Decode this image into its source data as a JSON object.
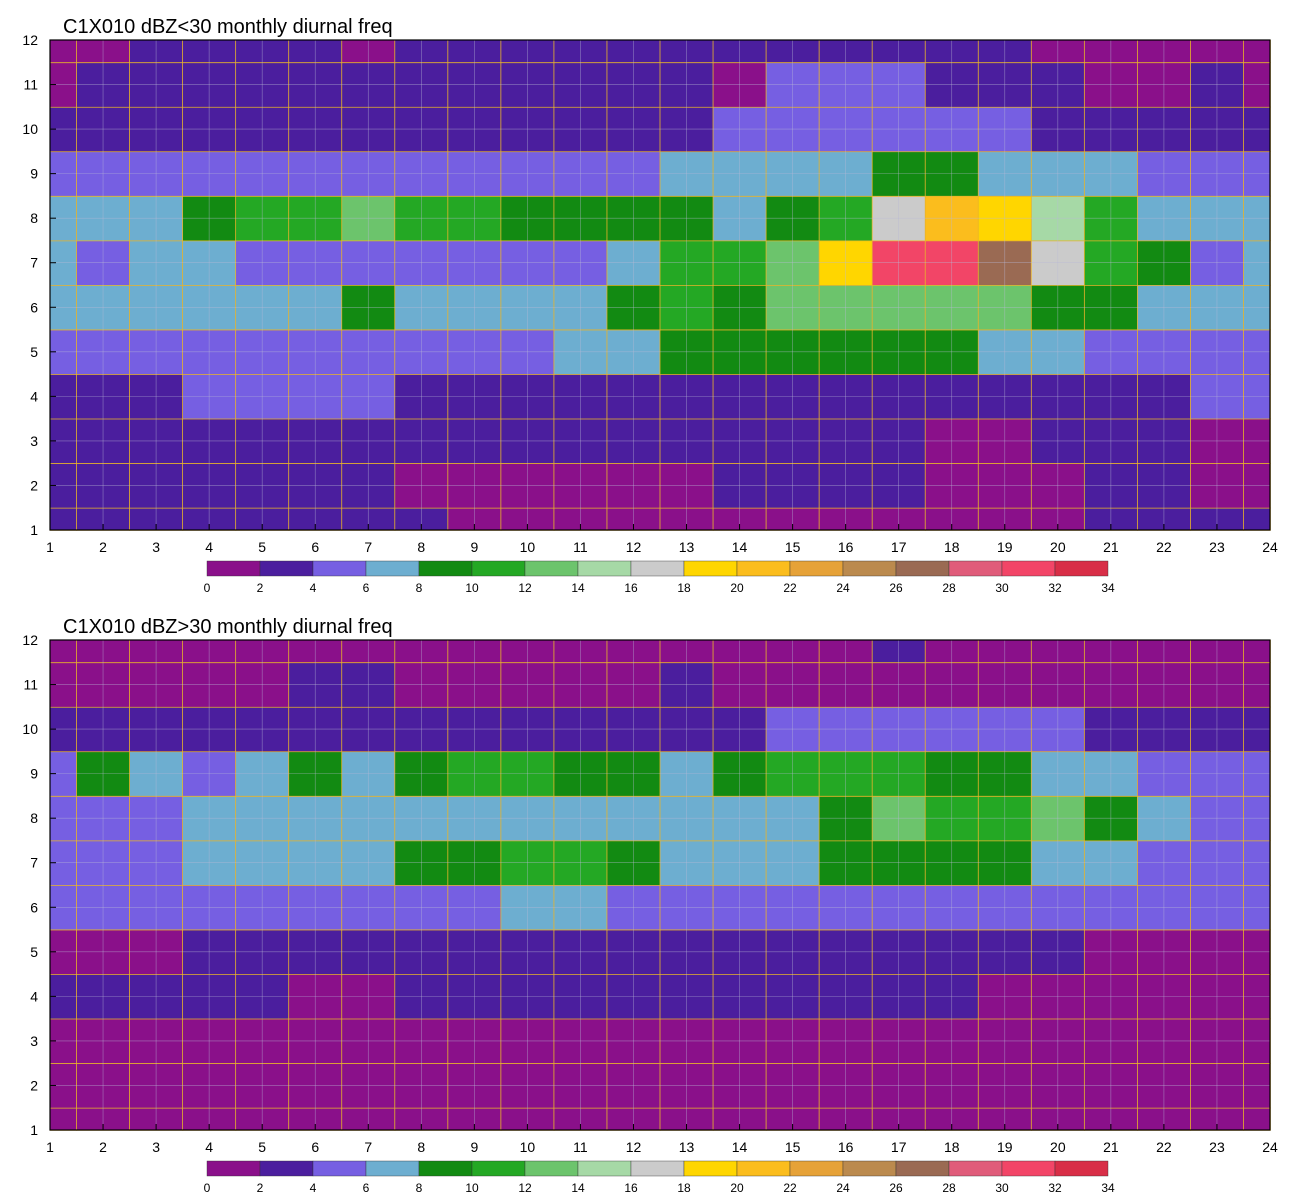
{
  "palette": [
    "#8a108a",
    "#4b1e9e",
    "#765fe2",
    "#6daed0",
    "#128a12",
    "#24a824",
    "#6cc46c",
    "#a6d9a6",
    "#cbcbcb",
    "#ffd600",
    "#fbbd1d",
    "#e6a238",
    "#bb8a4e",
    "#9a6a53",
    "#e05c7a",
    "#f24567",
    "#d82e47"
  ],
  "chart_data": [
    {
      "type": "heatmap",
      "title": "C1X010 dBZ<30 monthly diurnal freq",
      "x_ticks": [
        1,
        2,
        3,
        4,
        5,
        6,
        7,
        8,
        9,
        10,
        11,
        12,
        13,
        14,
        15,
        16,
        17,
        18,
        19,
        20,
        21,
        22,
        23,
        24
      ],
      "y_ticks": [
        1,
        2,
        3,
        4,
        5,
        6,
        7,
        8,
        9,
        10,
        11,
        12
      ],
      "xlim": [
        1,
        24
      ],
      "ylim": [
        1,
        12
      ],
      "colorbar": {
        "levels": [
          0,
          2,
          4,
          6,
          8,
          10,
          12,
          14,
          16,
          18,
          20,
          22,
          24,
          26,
          28,
          30,
          32,
          34
        ]
      },
      "rows": [
        [
          1,
          1,
          1,
          1,
          1,
          1,
          1,
          1,
          0,
          0,
          0,
          0,
          0,
          0,
          0,
          0,
          0,
          0,
          0,
          0,
          1,
          1,
          1,
          1
        ],
        [
          1,
          1,
          1,
          1,
          1,
          1,
          1,
          0,
          0,
          0,
          0,
          0,
          0,
          1,
          1,
          1,
          1,
          0,
          0,
          0,
          1,
          1,
          0,
          0
        ],
        [
          1,
          1,
          1,
          1,
          1,
          1,
          1,
          1,
          1,
          1,
          1,
          1,
          1,
          1,
          1,
          1,
          1,
          0,
          0,
          1,
          1,
          1,
          0,
          0
        ],
        [
          1,
          1,
          1,
          2,
          2,
          2,
          2,
          1,
          1,
          1,
          1,
          1,
          1,
          1,
          1,
          1,
          1,
          1,
          1,
          1,
          1,
          1,
          2,
          2
        ],
        [
          2,
          2,
          2,
          2,
          2,
          2,
          2,
          2,
          2,
          2,
          3,
          3,
          4,
          4,
          4,
          4,
          4,
          4,
          3,
          3,
          2,
          2,
          2,
          2
        ],
        [
          3,
          3,
          3,
          3,
          3,
          3,
          4,
          3,
          3,
          3,
          3,
          4,
          5,
          4,
          6,
          6,
          6,
          6,
          6,
          4,
          4,
          3,
          3,
          3
        ],
        [
          3,
          2,
          3,
          3,
          2,
          2,
          2,
          2,
          2,
          2,
          2,
          3,
          5,
          5,
          6,
          9,
          15,
          15,
          13,
          8,
          5,
          4,
          2,
          3
        ],
        [
          3,
          3,
          3,
          4,
          5,
          5,
          6,
          5,
          5,
          4,
          4,
          4,
          4,
          3,
          4,
          5,
          8,
          10,
          9,
          7,
          5,
          3,
          3,
          3
        ],
        [
          2,
          2,
          2,
          2,
          2,
          2,
          2,
          2,
          2,
          2,
          2,
          2,
          3,
          3,
          3,
          3,
          4,
          4,
          3,
          3,
          3,
          2,
          2,
          2
        ],
        [
          1,
          1,
          1,
          1,
          1,
          1,
          1,
          1,
          1,
          1,
          1,
          1,
          1,
          2,
          2,
          2,
          2,
          2,
          2,
          1,
          1,
          1,
          1,
          1
        ],
        [
          0,
          1,
          1,
          1,
          1,
          1,
          1,
          1,
          1,
          1,
          1,
          1,
          1,
          0,
          2,
          2,
          2,
          1,
          1,
          1,
          0,
          0,
          1,
          0
        ],
        [
          0,
          0,
          1,
          1,
          1,
          1,
          0,
          1,
          1,
          1,
          1,
          1,
          1,
          1,
          1,
          1,
          1,
          1,
          1,
          0,
          0,
          0,
          0,
          0
        ]
      ]
    },
    {
      "type": "heatmap",
      "title": "C1X010 dBZ>30 monthly diurnal freq",
      "x_ticks": [
        1,
        2,
        3,
        4,
        5,
        6,
        7,
        8,
        9,
        10,
        11,
        12,
        13,
        14,
        15,
        16,
        17,
        18,
        19,
        20,
        21,
        22,
        23,
        24
      ],
      "y_ticks": [
        1,
        2,
        3,
        4,
        5,
        6,
        7,
        8,
        9,
        10,
        11,
        12
      ],
      "xlim": [
        1,
        24
      ],
      "ylim": [
        1,
        12
      ],
      "colorbar": {
        "levels": [
          0,
          2,
          4,
          6,
          8,
          10,
          12,
          14,
          16,
          18,
          20,
          22,
          24,
          26,
          28,
          30,
          32,
          34
        ]
      },
      "rows": [
        [
          0,
          0,
          0,
          0,
          0,
          0,
          0,
          0,
          0,
          0,
          0,
          0,
          0,
          0,
          0,
          0,
          0,
          0,
          0,
          0,
          0,
          0,
          0,
          0
        ],
        [
          0,
          0,
          0,
          0,
          0,
          0,
          0,
          0,
          0,
          0,
          0,
          0,
          0,
          0,
          0,
          0,
          0,
          0,
          0,
          0,
          0,
          0,
          0,
          0
        ],
        [
          0,
          0,
          0,
          0,
          0,
          0,
          0,
          0,
          0,
          0,
          0,
          0,
          0,
          0,
          0,
          0,
          0,
          0,
          0,
          0,
          0,
          0,
          0,
          0
        ],
        [
          1,
          1,
          1,
          1,
          1,
          0,
          0,
          1,
          1,
          1,
          1,
          1,
          1,
          1,
          1,
          1,
          1,
          1,
          0,
          0,
          0,
          0,
          0,
          0
        ],
        [
          0,
          0,
          0,
          1,
          1,
          1,
          1,
          1,
          1,
          1,
          1,
          1,
          1,
          1,
          1,
          1,
          1,
          1,
          1,
          1,
          0,
          0,
          0,
          0
        ],
        [
          2,
          2,
          2,
          2,
          2,
          2,
          2,
          2,
          2,
          3,
          3,
          2,
          2,
          2,
          2,
          2,
          2,
          2,
          2,
          2,
          2,
          2,
          2,
          2
        ],
        [
          2,
          2,
          2,
          3,
          3,
          3,
          3,
          4,
          4,
          5,
          5,
          4,
          3,
          3,
          3,
          4,
          4,
          4,
          4,
          3,
          3,
          2,
          2,
          2
        ],
        [
          2,
          2,
          2,
          3,
          3,
          3,
          3,
          3,
          3,
          3,
          3,
          3,
          3,
          3,
          3,
          4,
          6,
          5,
          5,
          6,
          4,
          3,
          2,
          2
        ],
        [
          2,
          4,
          3,
          2,
          3,
          4,
          3,
          4,
          5,
          5,
          4,
          4,
          3,
          4,
          5,
          5,
          5,
          4,
          4,
          3,
          3,
          2,
          2,
          2
        ],
        [
          1,
          1,
          1,
          1,
          1,
          1,
          1,
          1,
          1,
          1,
          1,
          1,
          1,
          1,
          2,
          2,
          2,
          2,
          2,
          2,
          1,
          1,
          1,
          1
        ],
        [
          0,
          0,
          0,
          0,
          0,
          1,
          1,
          0,
          0,
          0,
          0,
          0,
          1,
          0,
          0,
          0,
          0,
          0,
          0,
          0,
          0,
          0,
          0,
          0
        ],
        [
          0,
          0,
          0,
          0,
          0,
          0,
          0,
          0,
          0,
          0,
          0,
          0,
          0,
          0,
          0,
          0,
          1,
          0,
          0,
          0,
          0,
          0,
          0,
          0
        ]
      ]
    }
  ]
}
